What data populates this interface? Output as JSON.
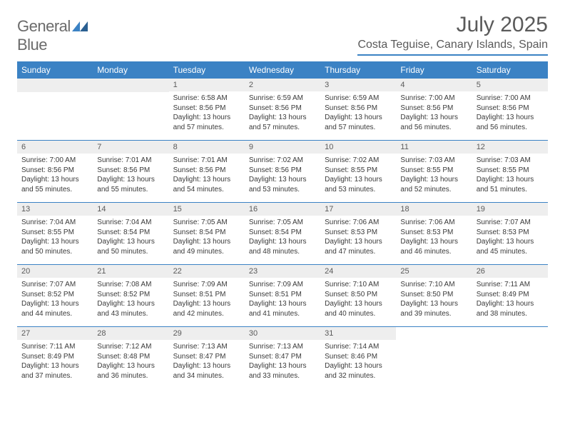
{
  "logo": {
    "text_gray": "General",
    "text_blue": "Blue"
  },
  "title": "July 2025",
  "location": "Costa Teguise, Canary Islands, Spain",
  "colors": {
    "header_bg": "#3b82c4",
    "header_text": "#ffffff",
    "daynum_bg": "#eeeeee",
    "border": "#3b82c4",
    "text": "#3a3a3a",
    "title_text": "#5a5a5a"
  },
  "day_names": [
    "Sunday",
    "Monday",
    "Tuesday",
    "Wednesday",
    "Thursday",
    "Friday",
    "Saturday"
  ],
  "weeks": [
    [
      {
        "n": "",
        "sunrise": "",
        "sunset": "",
        "daylight": ""
      },
      {
        "n": "",
        "sunrise": "",
        "sunset": "",
        "daylight": ""
      },
      {
        "n": "1",
        "sunrise": "Sunrise: 6:58 AM",
        "sunset": "Sunset: 8:56 PM",
        "daylight": "Daylight: 13 hours and 57 minutes."
      },
      {
        "n": "2",
        "sunrise": "Sunrise: 6:59 AM",
        "sunset": "Sunset: 8:56 PM",
        "daylight": "Daylight: 13 hours and 57 minutes."
      },
      {
        "n": "3",
        "sunrise": "Sunrise: 6:59 AM",
        "sunset": "Sunset: 8:56 PM",
        "daylight": "Daylight: 13 hours and 57 minutes."
      },
      {
        "n": "4",
        "sunrise": "Sunrise: 7:00 AM",
        "sunset": "Sunset: 8:56 PM",
        "daylight": "Daylight: 13 hours and 56 minutes."
      },
      {
        "n": "5",
        "sunrise": "Sunrise: 7:00 AM",
        "sunset": "Sunset: 8:56 PM",
        "daylight": "Daylight: 13 hours and 56 minutes."
      }
    ],
    [
      {
        "n": "6",
        "sunrise": "Sunrise: 7:00 AM",
        "sunset": "Sunset: 8:56 PM",
        "daylight": "Daylight: 13 hours and 55 minutes."
      },
      {
        "n": "7",
        "sunrise": "Sunrise: 7:01 AM",
        "sunset": "Sunset: 8:56 PM",
        "daylight": "Daylight: 13 hours and 55 minutes."
      },
      {
        "n": "8",
        "sunrise": "Sunrise: 7:01 AM",
        "sunset": "Sunset: 8:56 PM",
        "daylight": "Daylight: 13 hours and 54 minutes."
      },
      {
        "n": "9",
        "sunrise": "Sunrise: 7:02 AM",
        "sunset": "Sunset: 8:56 PM",
        "daylight": "Daylight: 13 hours and 53 minutes."
      },
      {
        "n": "10",
        "sunrise": "Sunrise: 7:02 AM",
        "sunset": "Sunset: 8:55 PM",
        "daylight": "Daylight: 13 hours and 53 minutes."
      },
      {
        "n": "11",
        "sunrise": "Sunrise: 7:03 AM",
        "sunset": "Sunset: 8:55 PM",
        "daylight": "Daylight: 13 hours and 52 minutes."
      },
      {
        "n": "12",
        "sunrise": "Sunrise: 7:03 AM",
        "sunset": "Sunset: 8:55 PM",
        "daylight": "Daylight: 13 hours and 51 minutes."
      }
    ],
    [
      {
        "n": "13",
        "sunrise": "Sunrise: 7:04 AM",
        "sunset": "Sunset: 8:55 PM",
        "daylight": "Daylight: 13 hours and 50 minutes."
      },
      {
        "n": "14",
        "sunrise": "Sunrise: 7:04 AM",
        "sunset": "Sunset: 8:54 PM",
        "daylight": "Daylight: 13 hours and 50 minutes."
      },
      {
        "n": "15",
        "sunrise": "Sunrise: 7:05 AM",
        "sunset": "Sunset: 8:54 PM",
        "daylight": "Daylight: 13 hours and 49 minutes."
      },
      {
        "n": "16",
        "sunrise": "Sunrise: 7:05 AM",
        "sunset": "Sunset: 8:54 PM",
        "daylight": "Daylight: 13 hours and 48 minutes."
      },
      {
        "n": "17",
        "sunrise": "Sunrise: 7:06 AM",
        "sunset": "Sunset: 8:53 PM",
        "daylight": "Daylight: 13 hours and 47 minutes."
      },
      {
        "n": "18",
        "sunrise": "Sunrise: 7:06 AM",
        "sunset": "Sunset: 8:53 PM",
        "daylight": "Daylight: 13 hours and 46 minutes."
      },
      {
        "n": "19",
        "sunrise": "Sunrise: 7:07 AM",
        "sunset": "Sunset: 8:53 PM",
        "daylight": "Daylight: 13 hours and 45 minutes."
      }
    ],
    [
      {
        "n": "20",
        "sunrise": "Sunrise: 7:07 AM",
        "sunset": "Sunset: 8:52 PM",
        "daylight": "Daylight: 13 hours and 44 minutes."
      },
      {
        "n": "21",
        "sunrise": "Sunrise: 7:08 AM",
        "sunset": "Sunset: 8:52 PM",
        "daylight": "Daylight: 13 hours and 43 minutes."
      },
      {
        "n": "22",
        "sunrise": "Sunrise: 7:09 AM",
        "sunset": "Sunset: 8:51 PM",
        "daylight": "Daylight: 13 hours and 42 minutes."
      },
      {
        "n": "23",
        "sunrise": "Sunrise: 7:09 AM",
        "sunset": "Sunset: 8:51 PM",
        "daylight": "Daylight: 13 hours and 41 minutes."
      },
      {
        "n": "24",
        "sunrise": "Sunrise: 7:10 AM",
        "sunset": "Sunset: 8:50 PM",
        "daylight": "Daylight: 13 hours and 40 minutes."
      },
      {
        "n": "25",
        "sunrise": "Sunrise: 7:10 AM",
        "sunset": "Sunset: 8:50 PM",
        "daylight": "Daylight: 13 hours and 39 minutes."
      },
      {
        "n": "26",
        "sunrise": "Sunrise: 7:11 AM",
        "sunset": "Sunset: 8:49 PM",
        "daylight": "Daylight: 13 hours and 38 minutes."
      }
    ],
    [
      {
        "n": "27",
        "sunrise": "Sunrise: 7:11 AM",
        "sunset": "Sunset: 8:49 PM",
        "daylight": "Daylight: 13 hours and 37 minutes."
      },
      {
        "n": "28",
        "sunrise": "Sunrise: 7:12 AM",
        "sunset": "Sunset: 8:48 PM",
        "daylight": "Daylight: 13 hours and 36 minutes."
      },
      {
        "n": "29",
        "sunrise": "Sunrise: 7:13 AM",
        "sunset": "Sunset: 8:47 PM",
        "daylight": "Daylight: 13 hours and 34 minutes."
      },
      {
        "n": "30",
        "sunrise": "Sunrise: 7:13 AM",
        "sunset": "Sunset: 8:47 PM",
        "daylight": "Daylight: 13 hours and 33 minutes."
      },
      {
        "n": "31",
        "sunrise": "Sunrise: 7:14 AM",
        "sunset": "Sunset: 8:46 PM",
        "daylight": "Daylight: 13 hours and 32 minutes."
      },
      {
        "n": "",
        "sunrise": "",
        "sunset": "",
        "daylight": ""
      },
      {
        "n": "",
        "sunrise": "",
        "sunset": "",
        "daylight": ""
      }
    ]
  ]
}
